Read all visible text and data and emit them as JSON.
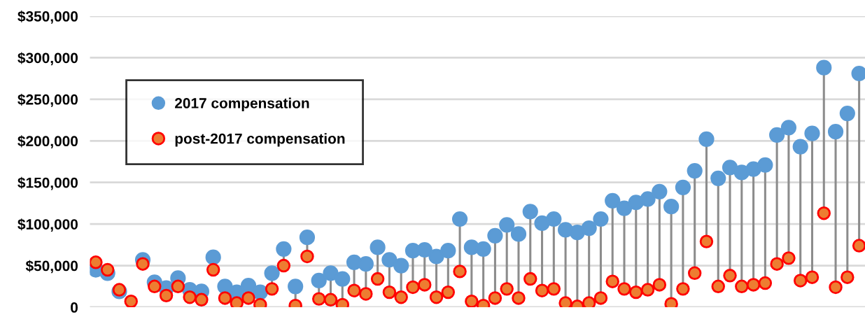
{
  "chart_data": {
    "type": "scatter",
    "categories": [
      null,
      null,
      null,
      null,
      null,
      null,
      null,
      null,
      null,
      null,
      null,
      null,
      null,
      null,
      null,
      null,
      null,
      null,
      null,
      null,
      null,
      null,
      null,
      null,
      null,
      null,
      null,
      null,
      null,
      null,
      null,
      null,
      null,
      null,
      null,
      null,
      null,
      null,
      null,
      null,
      null,
      null,
      null,
      null,
      null,
      null,
      null,
      null,
      null,
      null,
      null,
      null,
      null,
      null,
      null,
      null,
      null,
      null,
      null,
      null,
      null,
      null,
      null,
      null,
      null,
      null
    ],
    "series": [
      {
        "name": "2017 compensation",
        "color": "#5b9bd5",
        "values": [
          45000,
          41000,
          19000,
          null,
          57000,
          30000,
          23000,
          35000,
          21000,
          19000,
          60000,
          25000,
          18000,
          26000,
          18000,
          41000,
          70000,
          25000,
          84000,
          32000,
          41000,
          34000,
          54000,
          52000,
          72000,
          57000,
          50000,
          68000,
          69000,
          61000,
          68000,
          106000,
          72000,
          70000,
          86000,
          99000,
          88000,
          115000,
          101000,
          106000,
          93000,
          90000,
          95000,
          106000,
          128000,
          119000,
          126000,
          130000,
          139000,
          121000,
          144000,
          164000,
          202000,
          155000,
          168000,
          162000,
          166000,
          171000,
          207000,
          216000,
          193000,
          209000,
          288000,
          211000,
          233000,
          281000
        ]
      },
      {
        "name": "post-2017 compensation",
        "color": "#ed7d31",
        "values": [
          54000,
          45000,
          21000,
          7000,
          52000,
          25000,
          14000,
          25000,
          12000,
          9000,
          45000,
          11000,
          5000,
          11000,
          3000,
          22000,
          50000,
          2000,
          61000,
          10000,
          9000,
          3000,
          20000,
          16000,
          34000,
          18000,
          12000,
          24000,
          27000,
          12000,
          18000,
          43000,
          7000,
          2000,
          11000,
          22000,
          11000,
          34000,
          20000,
          22000,
          5000,
          1000,
          5000,
          11000,
          31000,
          22000,
          18000,
          21000,
          27000,
          4000,
          22000,
          41000,
          79000,
          25000,
          38000,
          25000,
          27000,
          29000,
          52000,
          59000,
          32000,
          36000,
          113000,
          24000,
          36000,
          74000
        ]
      }
    ],
    "ylim": [
      0,
      350000
    ],
    "yticks": [
      {
        "value": 0,
        "label": "0"
      },
      {
        "value": 50000,
        "label": "$50,000"
      },
      {
        "value": 100000,
        "label": "$100,000"
      },
      {
        "value": 150000,
        "label": "$150,000"
      },
      {
        "value": 200000,
        "label": "$200,000"
      },
      {
        "value": 250000,
        "label": "$250,000"
      },
      {
        "value": 300000,
        "label": "$300,000"
      },
      {
        "value": 350000,
        "label": "$350,000"
      }
    ],
    "tick_labels": "y",
    "grid": "y",
    "legend": "top left",
    "marker": "circle"
  }
}
